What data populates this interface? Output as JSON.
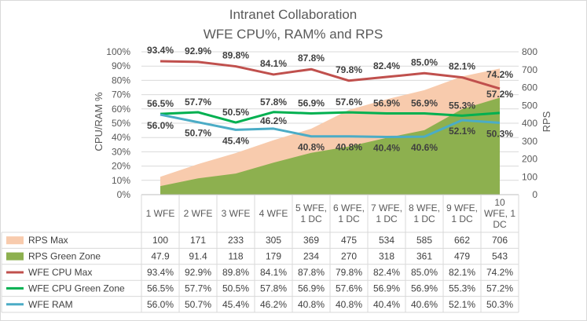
{
  "chart_data": {
    "type": "area",
    "title": "Intranet Collaboration",
    "subtitle": "WFE CPU%, RAM% and RPS",
    "ylabel": "CPU/RAM %",
    "ylabel_right": "RPS",
    "ylim": [
      0,
      100
    ],
    "ylim_right": [
      0,
      800
    ],
    "y_ticks": [
      "0%",
      "10%",
      "20%",
      "30%",
      "40%",
      "50%",
      "60%",
      "70%",
      "80%",
      "90%",
      "100%"
    ],
    "y_ticks_right": [
      "0",
      "100",
      "200",
      "300",
      "400",
      "500",
      "600",
      "700",
      "800"
    ],
    "categories": [
      [
        "1 WFE"
      ],
      [
        "2 WFE"
      ],
      [
        "3 WFE"
      ],
      [
        "4 WFE"
      ],
      [
        "5 WFE,",
        "1 DC"
      ],
      [
        "6 WFE,",
        "1 DC"
      ],
      [
        "7 WFE,",
        "1 DC"
      ],
      [
        "8 WFE,",
        "1 DC"
      ],
      [
        "9 WFE,",
        "1 DC"
      ],
      [
        "10",
        "WFE, 1",
        "DC"
      ]
    ],
    "grid": true,
    "legend": "data-table",
    "series": [
      {
        "name": "RPS Max",
        "kind": "area",
        "axis": "right",
        "color": "#f8cbad",
        "values": [
          100,
          171,
          233,
          305,
          369,
          475,
          534,
          585,
          662,
          706
        ],
        "labels": [
          "100",
          "171",
          "233",
          "305",
          "369",
          "475",
          "534",
          "585",
          "662",
          "706"
        ]
      },
      {
        "name": "RPS Green Zone",
        "kind": "area",
        "axis": "right",
        "color": "#8db04f",
        "values": [
          47.9,
          91.4,
          118,
          179,
          234,
          270,
          318,
          361,
          479,
          543
        ],
        "labels": [
          "47.9",
          "91.4",
          "118",
          "179",
          "234",
          "270",
          "318",
          "361",
          "479",
          "543"
        ]
      },
      {
        "name": "WFE CPU Max",
        "kind": "line",
        "axis": "left",
        "color": "#c0504d",
        "values": [
          93.4,
          92.9,
          89.8,
          84.1,
          87.8,
          79.8,
          82.4,
          85.0,
          82.1,
          74.2
        ],
        "labels": [
          "93.4%",
          "92.9%",
          "89.8%",
          "84.1%",
          "87.8%",
          "79.8%",
          "82.4%",
          "85.0%",
          "82.1%",
          "74.2%"
        ]
      },
      {
        "name": "WFE CPU Green Zone",
        "kind": "line",
        "axis": "left",
        "color": "#00b050",
        "values": [
          56.5,
          57.7,
          50.5,
          57.8,
          56.9,
          57.6,
          56.9,
          56.9,
          55.3,
          57.2
        ],
        "labels": [
          "56.5%",
          "57.7%",
          "50.5%",
          "57.8%",
          "56.9%",
          "57.6%",
          "56.9%",
          "56.9%",
          "55.3%",
          "57.2%"
        ]
      },
      {
        "name": "WFE RAM",
        "kind": "line",
        "axis": "left",
        "color": "#4bacc6",
        "values": [
          56.0,
          50.7,
          45.4,
          46.2,
          40.8,
          40.8,
          40.4,
          40.6,
          52.1,
          50.3
        ],
        "labels": [
          "56.0%",
          "50.7%",
          "45.4%",
          "46.2%",
          "40.8%",
          "40.8%",
          "40.4%",
          "40.6%",
          "52.1%",
          "50.3%"
        ]
      }
    ]
  }
}
